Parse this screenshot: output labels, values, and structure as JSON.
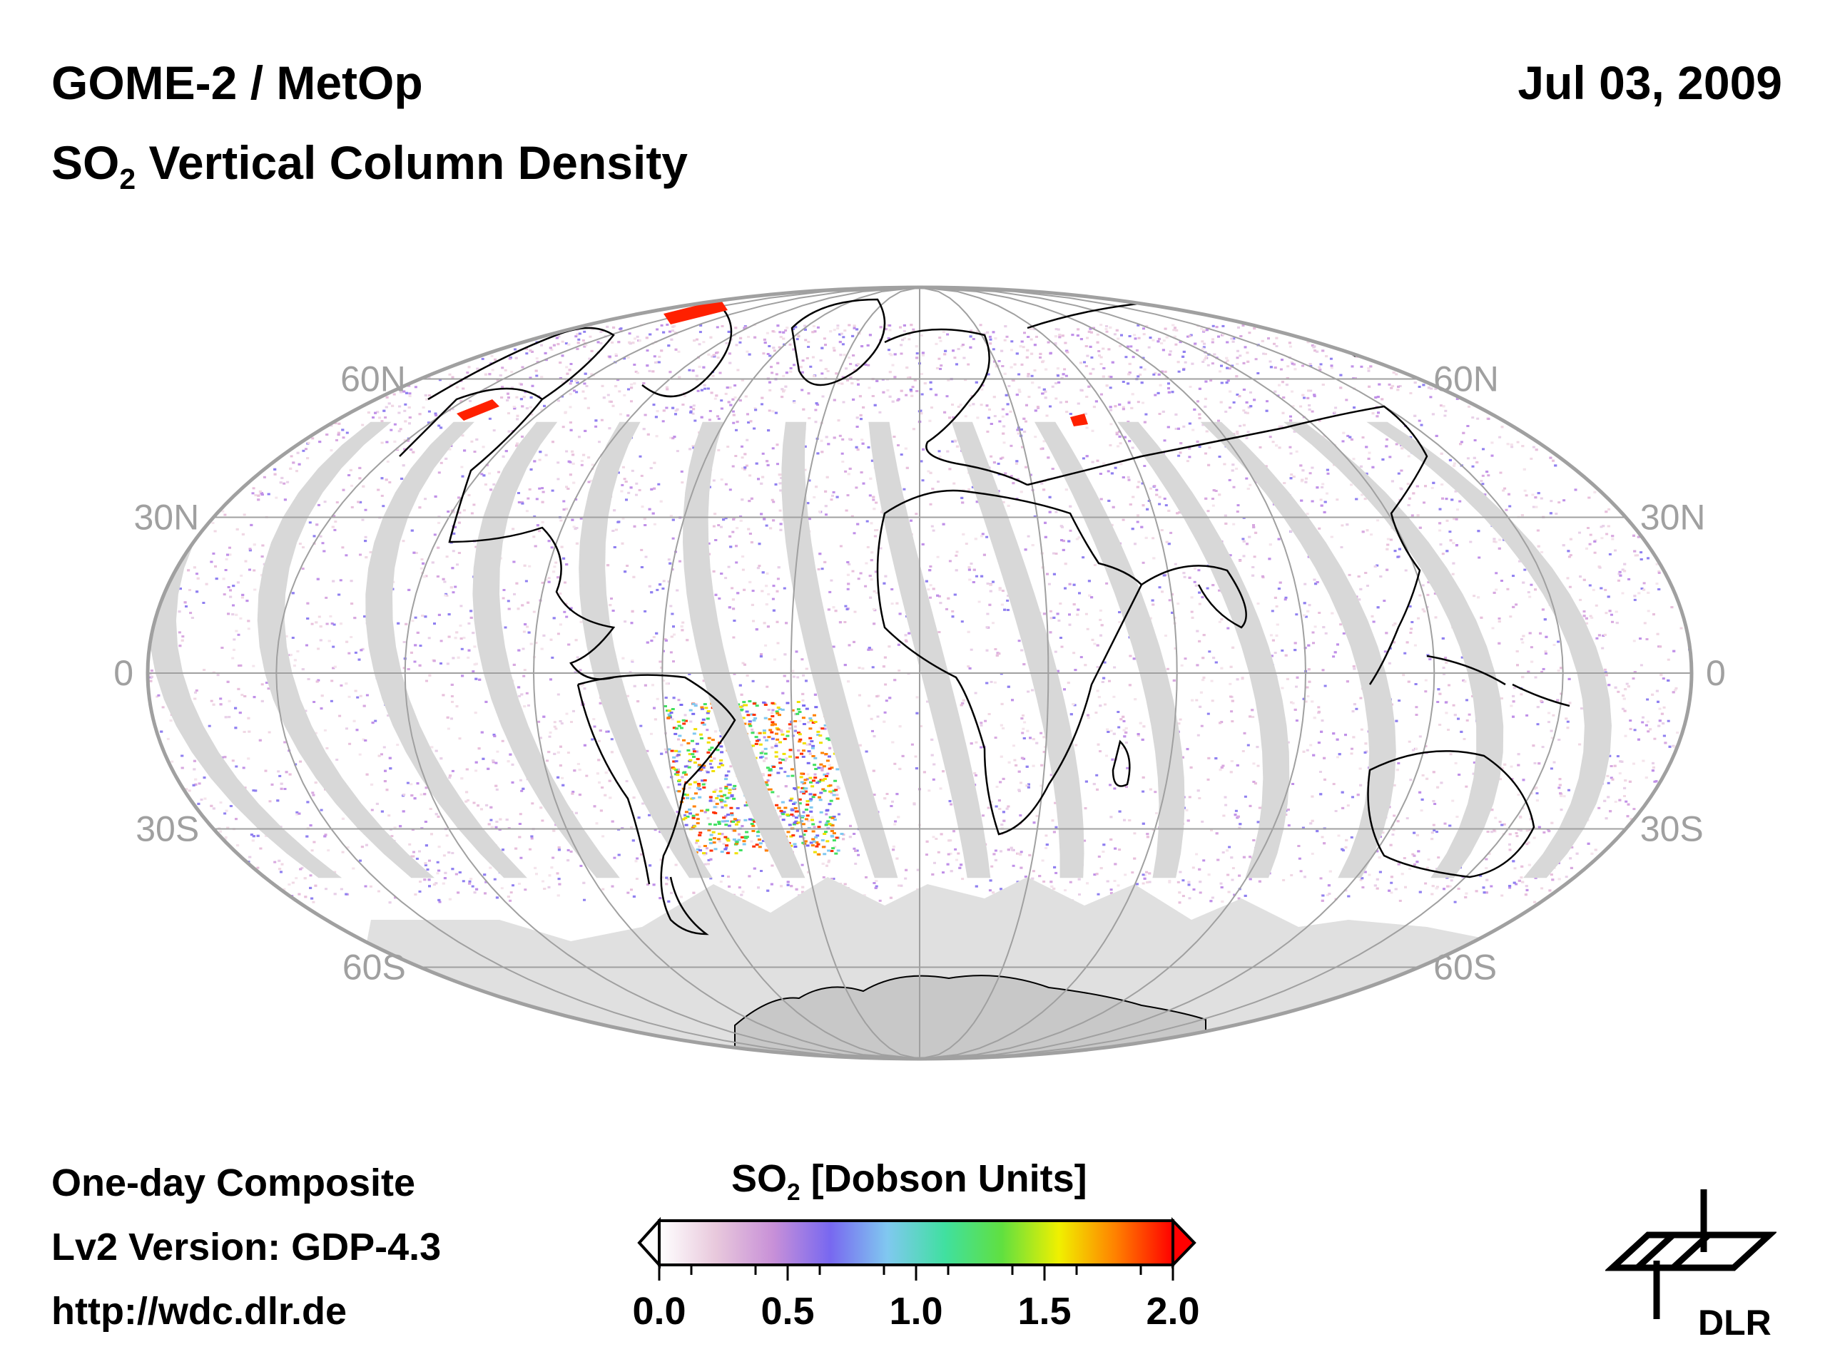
{
  "header": {
    "instrument": "GOME-2 / MetOp",
    "product_main": "SO",
    "product_sub": "2",
    "product_rest": " Vertical Column Density",
    "date": "Jul 03, 2009"
  },
  "footer": {
    "composite": "One-day Composite",
    "version": "Lv2 Version: GDP-4.3",
    "url": "http://wdc.dlr.de"
  },
  "colorbar": {
    "title_main": "SO",
    "title_sub": "2",
    "title_rest": " [Dobson Units]",
    "ticks": [
      "0.0",
      "0.5",
      "1.0",
      "1.5",
      "2.0"
    ],
    "range": [
      0.0,
      2.0
    ],
    "colors": [
      "#ffffff",
      "#e8c8dc",
      "#c890d8",
      "#7868f0",
      "#80c8f0",
      "#40e0a0",
      "#60e040",
      "#f0f000",
      "#ff8000",
      "#ff0000"
    ]
  },
  "map": {
    "projection": "Mollweide",
    "lat_labels": {
      "n60": "60N",
      "n30": "30N",
      "eq": "0",
      "s30": "30S",
      "s60": "60S"
    },
    "swath_gap_color": "#d8d8d8",
    "graticule_color": "#a0a0a0"
  },
  "logo": {
    "label": "DLR"
  }
}
